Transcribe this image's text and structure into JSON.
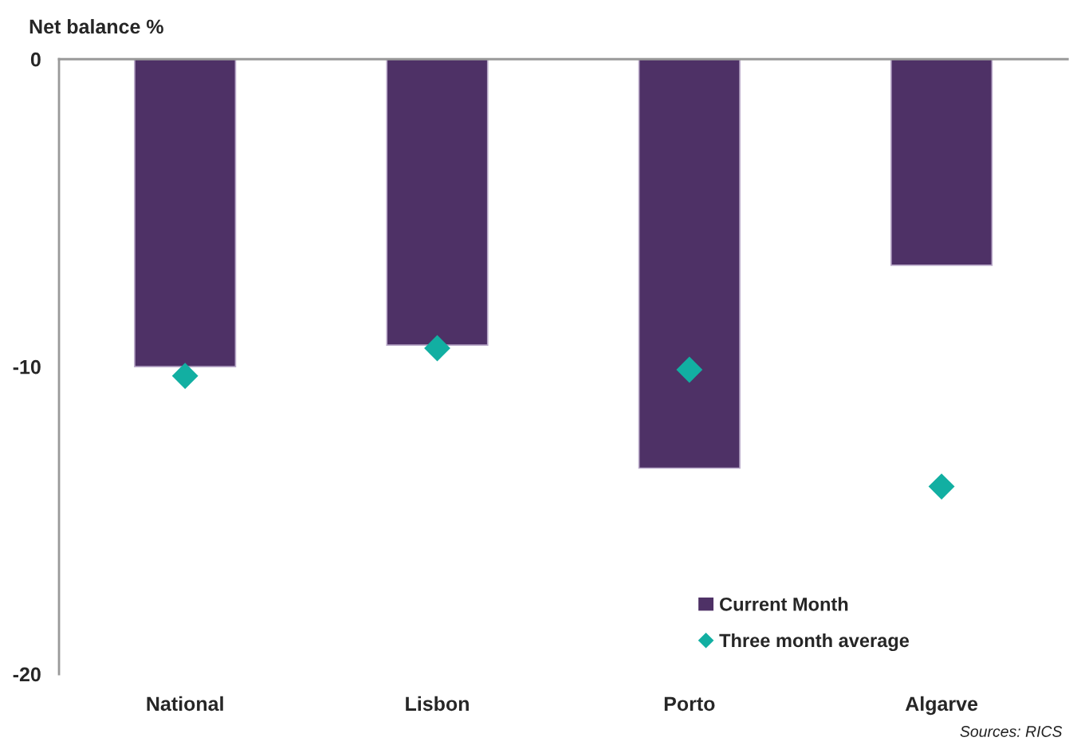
{
  "chart_data": {
    "type": "bar",
    "ylabel": "Net balance %",
    "categories": [
      "National",
      "Lisbon",
      "Porto",
      "Algarve"
    ],
    "series": [
      {
        "name": "Current Month",
        "color": "#4e3166",
        "values": [
          -10.0,
          -9.3,
          -13.3,
          -6.7
        ]
      },
      {
        "name": "Three month average",
        "type": "scatter",
        "marker": "diamond",
        "color": "#12afa2",
        "values": [
          -10.3,
          -9.4,
          -10.1,
          -13.9
        ]
      }
    ],
    "ylim": [
      -20,
      0
    ],
    "yticks": [
      -20,
      -10,
      0
    ],
    "grid": false,
    "legend": "bottom right",
    "annotations": [
      "Sources: RICS"
    ]
  }
}
